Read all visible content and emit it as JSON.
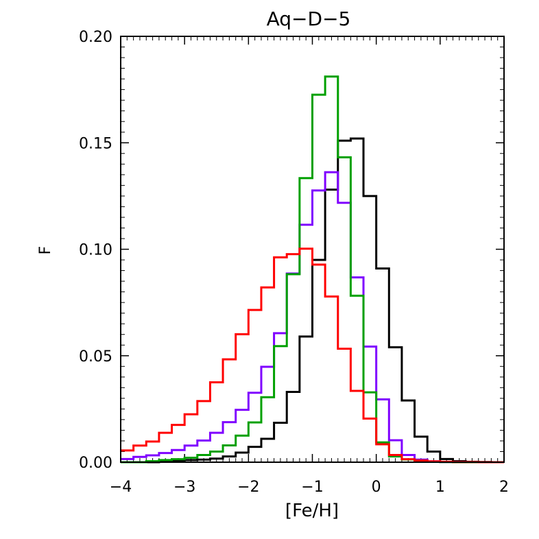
{
  "chart_data": {
    "type": "histogram",
    "title": "Aq−D−5",
    "xlabel": "[Fe/H]",
    "ylabel": "F",
    "xlim": [
      -4,
      2
    ],
    "ylim": [
      0.0,
      0.2
    ],
    "x_ticks": [
      -4,
      -3,
      -2,
      -1,
      0,
      1,
      2
    ],
    "x_tick_labels": [
      "−4",
      "−3",
      "−2",
      "−1",
      "0",
      "1",
      "2"
    ],
    "y_ticks": [
      0.0,
      0.05,
      0.1,
      0.15,
      0.2
    ],
    "y_tick_labels": [
      "0.00",
      "0.05",
      "0.10",
      "0.15",
      "0.20"
    ],
    "bin_width": 0.2,
    "bin_start": -4.0,
    "series": [
      {
        "name": "black",
        "color": "#000000",
        "values": [
          0.0,
          0.0,
          0.0,
          0.0005,
          0.0008,
          0.001,
          0.0012,
          0.0017,
          0.0027,
          0.0045,
          0.0072,
          0.011,
          0.0185,
          0.033,
          0.059,
          0.095,
          0.128,
          0.151,
          0.152,
          0.125,
          0.091,
          0.054,
          0.029,
          0.012,
          0.005,
          0.0015,
          0.0005,
          0.0002,
          0.0001,
          0.0
        ]
      },
      {
        "name": "purple",
        "color": "#7f00ff",
        "values": [
          0.0015,
          0.0025,
          0.0032,
          0.0043,
          0.0057,
          0.0078,
          0.0102,
          0.0138,
          0.0188,
          0.0246,
          0.0326,
          0.0448,
          0.0606,
          0.0886,
          0.1115,
          0.1276,
          0.1362,
          0.1218,
          0.0868,
          0.0543,
          0.0295,
          0.0103,
          0.0034,
          0.0012,
          0.0004,
          0.0001,
          0.0001,
          0.0,
          0.0,
          0.0
        ]
      },
      {
        "name": "green",
        "color": "#00a000",
        "values": [
          0.0,
          0.0,
          0.0005,
          0.001,
          0.0014,
          0.0021,
          0.0034,
          0.005,
          0.0079,
          0.0125,
          0.0187,
          0.0305,
          0.0545,
          0.0883,
          0.1334,
          0.1726,
          0.1811,
          0.1432,
          0.0782,
          0.0328,
          0.0093,
          0.0027,
          0.0013,
          0.0005,
          0.0002,
          0.0001,
          0.0,
          0.0,
          0.0,
          0.0
        ]
      },
      {
        "name": "red",
        "color": "#ff0000",
        "values": [
          0.0055,
          0.0078,
          0.0097,
          0.0138,
          0.0175,
          0.0225,
          0.0287,
          0.0375,
          0.0483,
          0.0601,
          0.0715,
          0.0821,
          0.0962,
          0.0977,
          0.1003,
          0.0928,
          0.0778,
          0.0533,
          0.0335,
          0.0205,
          0.0084,
          0.0034,
          0.0014,
          0.0008,
          0.0004,
          0.0002,
          0.0001,
          0.0001,
          0.0,
          0.0
        ]
      }
    ]
  }
}
